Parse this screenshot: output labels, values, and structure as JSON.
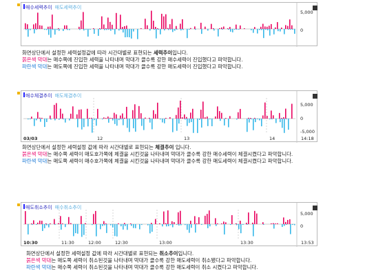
{
  "sections": [
    {
      "legend": [
        "매수세력추이",
        "매도세력추이"
      ],
      "y_labels": [
        "5,000",
        "0"
      ],
      "x_labels": [],
      "desc_pre": "화면상단에서 설정한 세력설정값에 따라 시간대별로 표현되는 ",
      "desc_bold": "세력추이",
      "desc_post": "입니다.",
      "red_label": "붉은색 막대",
      "red_text": "는 매수쪽에 진입한 세력을 나타내며 막대가 클수록 강한 매수세력이 진입했다고 파악합니다.",
      "blue_label": "파란색 막대",
      "blue_text": "는 매도쪽에 진입한 세력을 나타내며 막대가 클수록 강한 매도세력이 진입했다고 파악합니다.",
      "colors": {
        "pos": "#e8005e",
        "neg": "#35b7e8"
      }
    },
    {
      "legend": [
        "매수체결추이",
        "매도체결추이"
      ],
      "y_labels": [
        "5,000",
        "0",
        "-5,000"
      ],
      "x_labels": [
        "03/03",
        "12",
        "13",
        "14",
        "14:18"
      ],
      "desc_pre": "화면상단에서 설정한 세력설정 값에 따라 시간대별로 표현되는 ",
      "desc_bold": "체결추이",
      "desc_post": " 입니다.",
      "red_label": "붉은색 막대",
      "red_text": "는 매수쪽 세력이 매도호가쪽에 체결을 시킨것을 나타내며 막대가 클수록 강한 매수세력이 체결시켰다고 파악합니다.",
      "blue_label": "파란색 막대",
      "blue_text": "는 매도쪽 세력이 매수호가쪽에 체결을 시킨것을 나타내며 막대가 클수록 강한 매도세력이 체결시켰다고 파악합니다.",
      "colors": {
        "pos": "#e8005e",
        "neg": "#35b7e8"
      }
    },
    {
      "legend": [
        "매도취소추이",
        "매수취소추이"
      ],
      "y_labels": [
        "5,000",
        "0"
      ],
      "x_labels": [
        "10:30",
        "11:30",
        "12:00",
        "12:30",
        "13:00",
        "13:30",
        "13:53"
      ],
      "desc_pre": "화면상단에서 설정한 세력설정 값에 따라 시간대별로 표현되는 ",
      "desc_bold": "취소추이",
      "desc_post": "입니다.",
      "red_label": "붉은색 막대",
      "red_text": "는 매도쪽 세력이 취소된것을 나타내며 막대가 클수록 강한 매도세력이 취소됐다고 파악합니다.",
      "blue_label": "파란색 막대",
      "blue_text": "는 매수쪽 세력이 취소된것을 나타내며 막대가 클수록 강한 매도세력이 취소 시켰다고 파악합니다.",
      "colors": {
        "pos": "#e8005e",
        "neg": "#35b7e8"
      }
    }
  ]
}
